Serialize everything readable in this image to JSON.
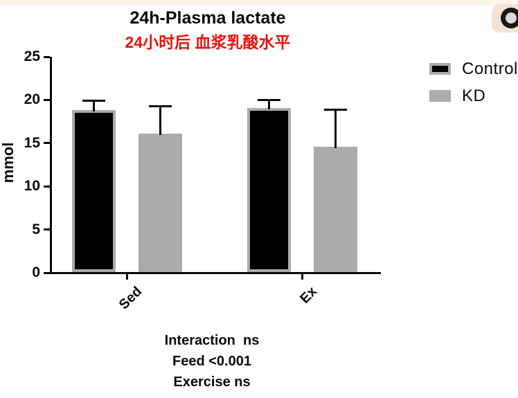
{
  "page": {
    "top_strip_color": "#fbf5ea"
  },
  "corner_icon": {
    "bg": "#f4e2d2",
    "ring": "#191919",
    "center": "#d9d9d9"
  },
  "chart_data": {
    "type": "bar",
    "title": "24h-Plasma lactate",
    "subtitle": "24小时后 血浆乳酸水平",
    "subtitle_color": "#e8130b",
    "ylabel": "mmol",
    "ylim": [
      0,
      25
    ],
    "yticks": [
      0,
      5,
      10,
      15,
      20,
      25
    ],
    "categories": [
      "Sed",
      "Ex"
    ],
    "series": [
      {
        "name": "Control",
        "fill": "#000000",
        "border": "#ababab",
        "values": [
          18.8,
          19.1
        ],
        "error_up": [
          19.9,
          20.0
        ]
      },
      {
        "name": "KD",
        "fill": "#ababab",
        "border": "#ababab",
        "values": [
          16.1,
          14.6
        ],
        "error_up": [
          19.3,
          18.9
        ]
      }
    ],
    "grid": false,
    "legend_position": "right",
    "stats_lines": [
      "Interaction  ns",
      "Feed <0.001",
      "Exercise ns"
    ]
  }
}
